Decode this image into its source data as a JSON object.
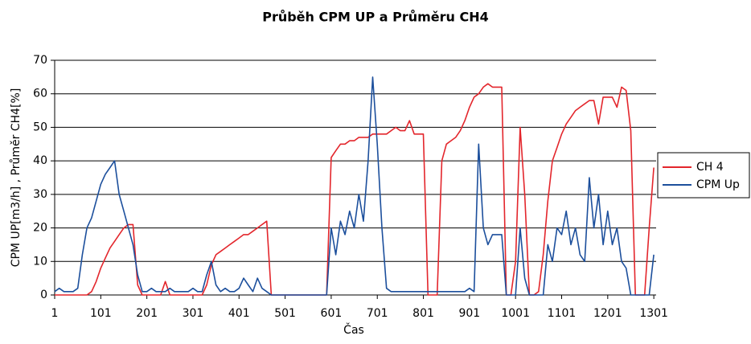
{
  "chart_data": {
    "type": "line",
    "title": "Průběh CPM UP a Průměru CH4",
    "x_label": "Čas",
    "y_label": "CPM UP[m3/h] , Průměr CH4[%]",
    "x": [
      1,
      11,
      21,
      31,
      41,
      51,
      61,
      71,
      81,
      91,
      101,
      111,
      121,
      131,
      141,
      151,
      161,
      171,
      181,
      191,
      201,
      211,
      221,
      231,
      241,
      251,
      261,
      271,
      281,
      291,
      301,
      311,
      321,
      331,
      341,
      351,
      361,
      371,
      381,
      391,
      401,
      411,
      421,
      431,
      441,
      451,
      461,
      471,
      481,
      491,
      501,
      511,
      521,
      531,
      541,
      551,
      561,
      571,
      581,
      591,
      601,
      611,
      621,
      631,
      641,
      651,
      661,
      671,
      681,
      691,
      701,
      711,
      721,
      731,
      741,
      751,
      761,
      771,
      781,
      791,
      801,
      811,
      821,
      831,
      841,
      851,
      861,
      871,
      881,
      891,
      901,
      911,
      921,
      931,
      941,
      951,
      961,
      971,
      981,
      991,
      1001,
      1011,
      1021,
      1031,
      1041,
      1051,
      1061,
      1071,
      1081,
      1091,
      1101,
      1111,
      1121,
      1131,
      1141,
      1151,
      1161,
      1171,
      1181,
      1191,
      1201,
      1211,
      1221,
      1231,
      1241,
      1251,
      1261,
      1271,
      1281,
      1291,
      1301
    ],
    "series": [
      {
        "name": "CH 4",
        "color": "#e3262c",
        "values": [
          0,
          0,
          0,
          0,
          0,
          0,
          0,
          0,
          1,
          4,
          8,
          11,
          14,
          16,
          18,
          20,
          21,
          21,
          3,
          0,
          0,
          0,
          0,
          0,
          4,
          0,
          0,
          0,
          0,
          0,
          0,
          0,
          0,
          3,
          9,
          12,
          13,
          14,
          15,
          16,
          17,
          18,
          18,
          19,
          20,
          21,
          22,
          0,
          0,
          0,
          0,
          0,
          0,
          0,
          0,
          0,
          0,
          0,
          0,
          0,
          41,
          43,
          45,
          45,
          46,
          46,
          47,
          47,
          47,
          48,
          48,
          48,
          48,
          49,
          50,
          49,
          49,
          52,
          48,
          48,
          48,
          0,
          0,
          0,
          40,
          45,
          46,
          47,
          49,
          52,
          56,
          59,
          60,
          62,
          63,
          62,
          62,
          62,
          0,
          0,
          10,
          50,
          30,
          0,
          0,
          1,
          12,
          28,
          40,
          44,
          48,
          51,
          53,
          55,
          56,
          57,
          58,
          58,
          51,
          59,
          59,
          59,
          56,
          62,
          61,
          49,
          0,
          0,
          0,
          20,
          38
        ]
      },
      {
        "name": "CPM Up",
        "color": "#1c4f9c",
        "values": [
          1,
          2,
          1,
          1,
          1,
          2,
          12,
          20,
          23,
          28,
          33,
          36,
          38,
          40,
          30,
          25,
          20,
          15,
          6,
          1,
          1,
          2,
          1,
          1,
          1,
          2,
          1,
          1,
          1,
          1,
          2,
          1,
          1,
          6,
          10,
          3,
          1,
          2,
          1,
          1,
          2,
          5,
          3,
          1,
          5,
          2,
          1,
          0,
          0,
          0,
          0,
          0,
          0,
          0,
          0,
          0,
          0,
          0,
          0,
          0,
          20,
          12,
          22,
          18,
          25,
          20,
          30,
          22,
          40,
          65,
          45,
          20,
          2,
          1,
          1,
          1,
          1,
          1,
          1,
          1,
          1,
          1,
          1,
          1,
          1,
          1,
          1,
          1,
          1,
          1,
          2,
          1,
          45,
          20,
          15,
          18,
          18,
          18,
          0,
          0,
          0,
          20,
          5,
          0,
          0,
          0,
          0,
          15,
          10,
          20,
          18,
          25,
          15,
          20,
          12,
          10,
          35,
          20,
          30,
          15,
          25,
          15,
          20,
          10,
          8,
          0,
          0,
          0,
          0,
          0,
          12
        ]
      }
    ],
    "xlim": [
      1,
      1306
    ],
    "xticks": [
      1,
      101,
      201,
      301,
      401,
      501,
      601,
      701,
      801,
      901,
      1001,
      1101,
      1201,
      1301
    ],
    "ylim": [
      0,
      70
    ],
    "yticks": [
      0,
      10,
      20,
      30,
      40,
      50,
      60,
      70
    ],
    "grid": true,
    "legend": "right"
  }
}
